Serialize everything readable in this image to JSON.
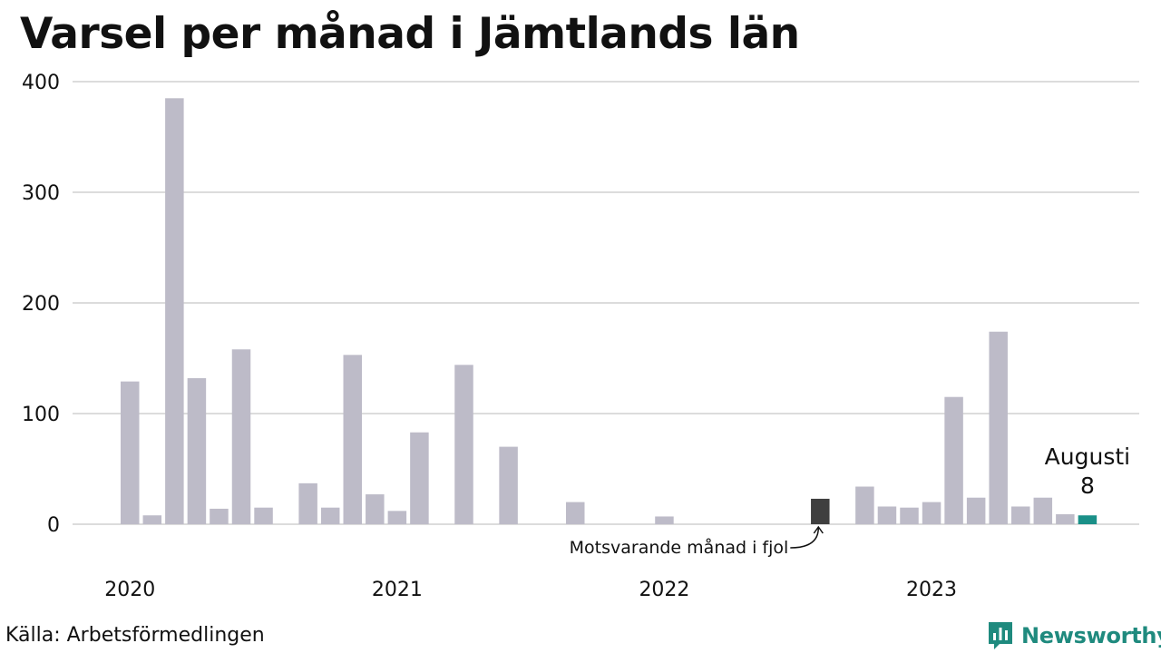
{
  "title": "Varsel per månad i Jämtlands län",
  "source": "Källa: Arbetsförmedlingen",
  "brand": {
    "name": "Newsworthy",
    "icon": "newsworthy-logo-icon",
    "color": "#1f8a7e"
  },
  "colors": {
    "bar": "#bdbbc8",
    "previous_year": "#3f3f3f",
    "current": "#1a9088",
    "grid": "#dcdcdc"
  },
  "chart_data": {
    "type": "bar",
    "title": "Varsel per månad i Jämtlands län",
    "xlabel": "",
    "ylabel": "",
    "ylim": [
      0,
      400
    ],
    "yticks": [
      0,
      100,
      200,
      300,
      400
    ],
    "xticks": [
      {
        "label": "2020",
        "index": 0
      },
      {
        "label": "2021",
        "index": 12
      },
      {
        "label": "2022",
        "index": 24
      },
      {
        "label": "2023",
        "index": 36
      }
    ],
    "grid": true,
    "values": [
      129,
      8,
      385,
      132,
      14,
      158,
      15,
      0,
      37,
      15,
      153,
      27,
      12,
      83,
      0,
      144,
      0,
      70,
      0,
      0,
      20,
      0,
      0,
      0,
      7,
      0,
      0,
      0,
      0,
      0,
      0,
      23,
      0,
      34,
      16,
      15,
      20,
      115,
      24,
      174,
      16,
      24,
      9,
      8
    ],
    "highlight_previous_year_index": 31,
    "highlight_current_index": 43,
    "annotation_previous_year": "Motsvarande månad i fjol",
    "current_label": {
      "month": "Augusti",
      "value": "8"
    }
  }
}
